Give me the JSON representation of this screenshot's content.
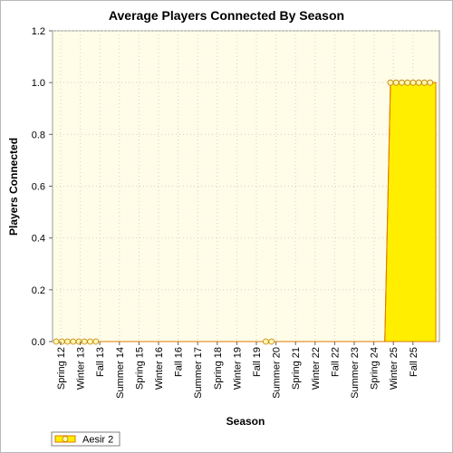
{
  "chart_data": {
    "type": "area",
    "title": "Average Players Connected By Season",
    "xlabel": "Season",
    "ylabel": "Players Connected",
    "ylim": [
      0,
      1.2
    ],
    "yticks": [
      "0.0",
      "0.2",
      "0.4",
      "0.6",
      "0.8",
      "1.0",
      "1.2"
    ],
    "xtick_labels": [
      "Spring 12",
      "Winter 13",
      "Fall 13",
      "Summer 14",
      "Spring 15",
      "Winter 16",
      "Fall 16",
      "Summer 17",
      "Spring 18",
      "Winter 19",
      "Fall 19",
      "Summer 20",
      "Spring 21",
      "Winter 22",
      "Fall 22",
      "Summer 23",
      "Spring 24",
      "Winter 25",
      "Fall 25"
    ],
    "grid": true,
    "legend": "bottom-left",
    "colors": {
      "plot_bg": "#fffde8",
      "fill": "#ffee00",
      "line": "#e07a00",
      "marker_fill": "#fff6b0"
    },
    "series": [
      {
        "name": "Aesir 2",
        "marker_indices": [
          0,
          1,
          2,
          3,
          4,
          5,
          6,
          7,
          37,
          38,
          59,
          60,
          61,
          62,
          63,
          64,
          65,
          66
        ],
        "values": [
          0,
          0,
          0,
          0,
          0,
          0,
          0,
          0,
          0,
          0,
          0,
          0,
          0,
          0,
          0,
          0,
          0,
          0,
          0,
          0,
          0,
          0,
          0,
          0,
          0,
          0,
          0,
          0,
          0,
          0,
          0,
          0,
          0,
          0,
          0,
          0,
          0,
          0,
          0,
          0,
          0,
          0,
          0,
          0,
          0,
          0,
          0,
          0,
          0,
          0,
          0,
          0,
          0,
          0,
          0,
          0,
          0,
          0,
          0,
          1,
          1,
          1,
          1,
          1,
          1,
          1,
          1,
          1
        ]
      }
    ]
  }
}
